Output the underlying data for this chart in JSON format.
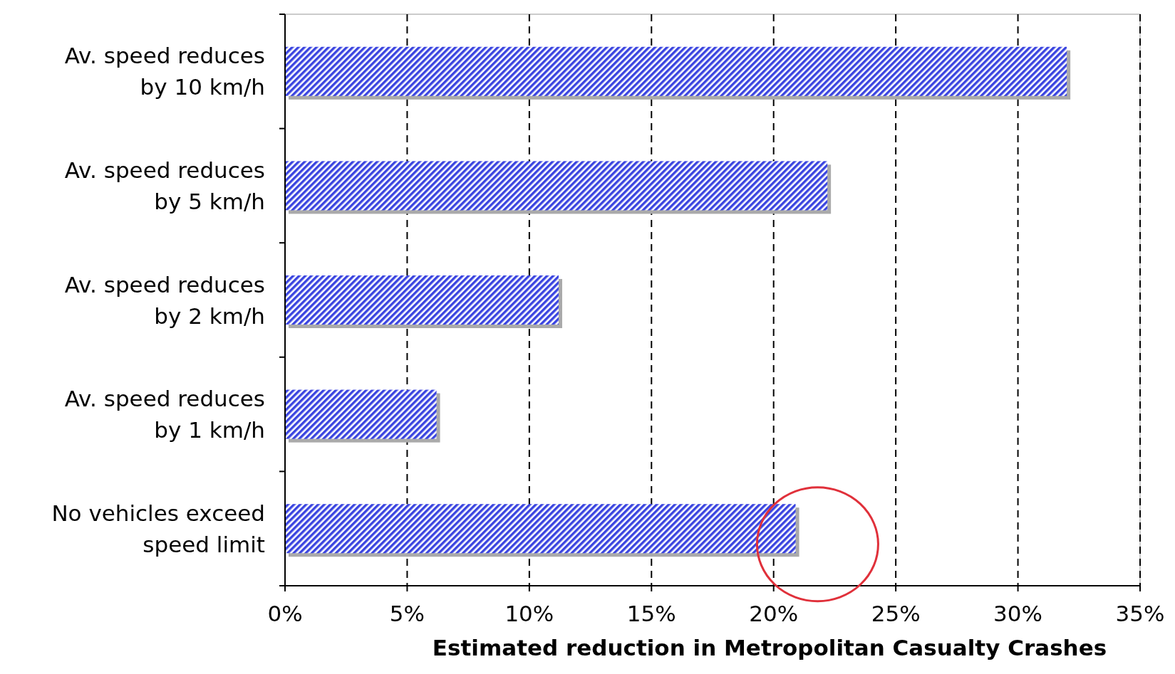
{
  "chart_data": {
    "type": "bar",
    "orientation": "horizontal",
    "xlabel": "Estimated reduction in Metropolitan Casualty Crashes",
    "categories": [
      "Av. speed reduces by 10 km/h",
      "Av. speed reduces by 5 km/h",
      "Av. speed reduces by 2 km/h",
      "Av. speed reduces by 1 km/h",
      "No vehicles exceed speed limit"
    ],
    "values": [
      32.0,
      22.2,
      11.2,
      6.2,
      20.9
    ],
    "color": "#3a44e0",
    "xlim": [
      0,
      35
    ],
    "xticks": [
      {
        "value": 0,
        "label": "0%"
      },
      {
        "value": 5,
        "label": "5%"
      },
      {
        "value": 10,
        "label": "10%"
      },
      {
        "value": 15,
        "label": "15%"
      },
      {
        "value": 20,
        "label": "20%"
      },
      {
        "value": 25,
        "label": "25%"
      },
      {
        "value": 30,
        "label": "30%"
      },
      {
        "value": 35,
        "label": "35%"
      }
    ],
    "grid": "x"
  }
}
